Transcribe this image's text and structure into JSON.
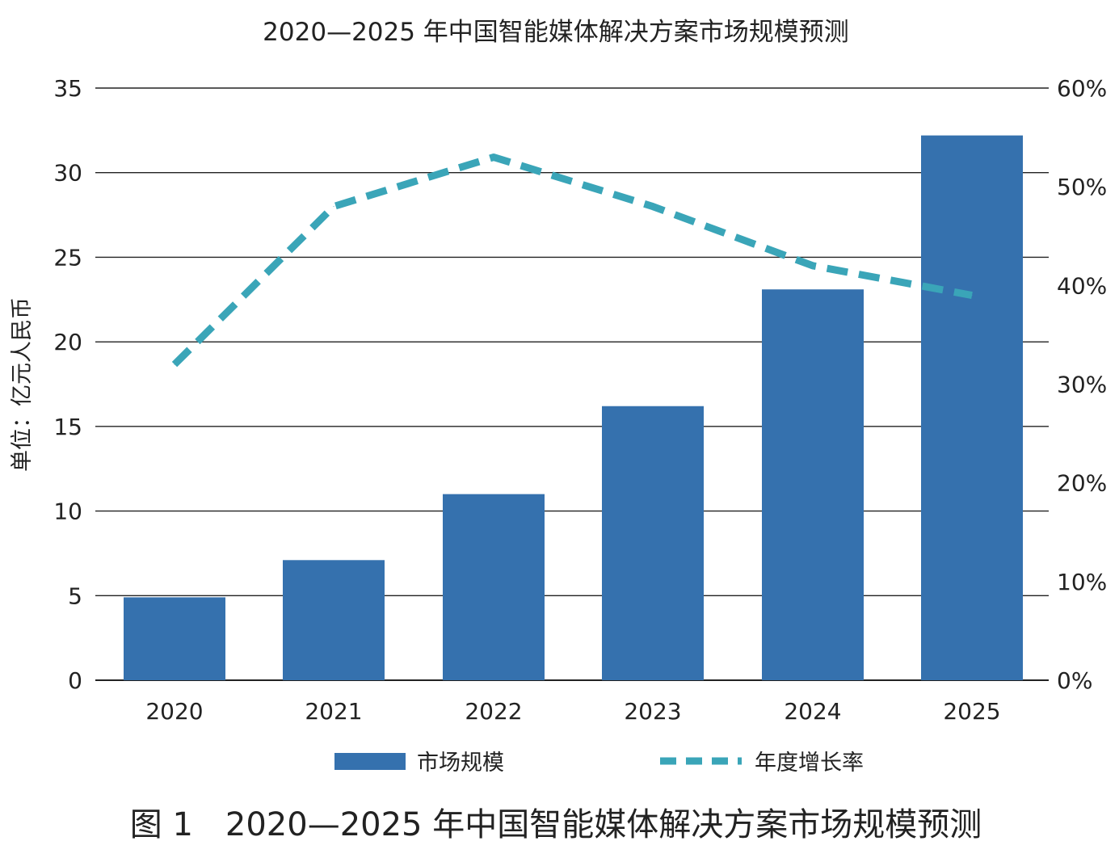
{
  "colors": {
    "bar": "#3571ae",
    "line": "#3aa5b8",
    "grid": "#222222",
    "text": "#222222"
  },
  "chart_data": {
    "type": "bar",
    "title": "2020—2025 年中国智能媒体解决方案市场规模预测",
    "caption": "图 1　2020—2025 年中国智能媒体解决方案市场规模预测",
    "ylabel": "单位：亿元人民币",
    "y2label": "",
    "xlabel": "",
    "categories": [
      "2020",
      "2021",
      "2022",
      "2023",
      "2024",
      "2025"
    ],
    "ylim": [
      0,
      35
    ],
    "yticks": [
      "0",
      "5",
      "10",
      "15",
      "20",
      "25",
      "30",
      "35"
    ],
    "y2lim": [
      0,
      60
    ],
    "y2ticks": [
      "0%",
      "10%",
      "20%",
      "30%",
      "40%",
      "50%",
      "60%"
    ],
    "grid": true,
    "legend_position": "bottom",
    "series": [
      {
        "name": "市场规模",
        "type": "bar",
        "axis": "left",
        "values": [
          4.9,
          7.1,
          11.0,
          16.2,
          23.1,
          32.2
        ]
      },
      {
        "name": "年度增长率",
        "type": "line",
        "style": "dashed",
        "axis": "right",
        "values": [
          32,
          48,
          53,
          48,
          42,
          39
        ]
      }
    ]
  }
}
